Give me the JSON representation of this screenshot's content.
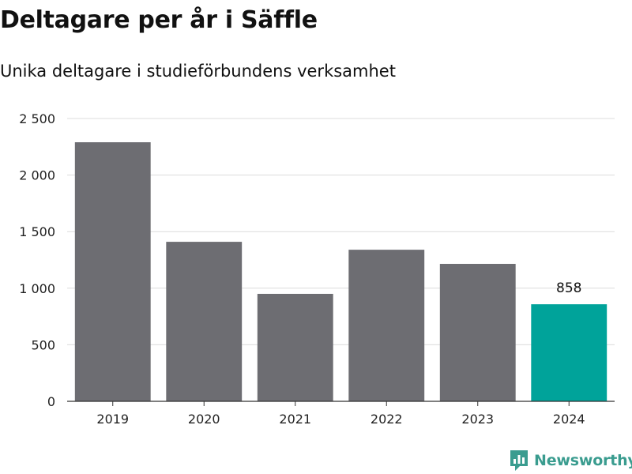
{
  "title": "Deltagare per år i Säffle",
  "subtitle": "Unika deltagare i studieförbundens verksamhet",
  "brand": {
    "name": "Newsworthy",
    "icon": "newsworthy-logo-icon"
  },
  "colors": {
    "bar": "#6d6d72",
    "highlight": "#00a39a",
    "grid": "#dcdcdc",
    "axis": "#333333"
  },
  "chart_data": {
    "type": "bar",
    "title": "Deltagare per år i Säffle",
    "subtitle": "Unika deltagare i studieförbundens verksamhet",
    "categories": [
      "2019",
      "2020",
      "2021",
      "2022",
      "2023",
      "2024"
    ],
    "values": [
      2290,
      1410,
      950,
      1340,
      1215,
      858
    ],
    "highlight_index": 5,
    "data_labels": [
      {
        "index": 5,
        "text": "858"
      }
    ],
    "xlabel": "",
    "ylabel": "",
    "ylim": [
      0,
      2500
    ],
    "yticks": [
      0,
      500,
      1000,
      1500,
      2000,
      2500
    ],
    "ytick_labels": [
      "0",
      "500",
      "1 000",
      "1 500",
      "2 000",
      "2 500"
    ],
    "grid": true,
    "legend": "none"
  }
}
